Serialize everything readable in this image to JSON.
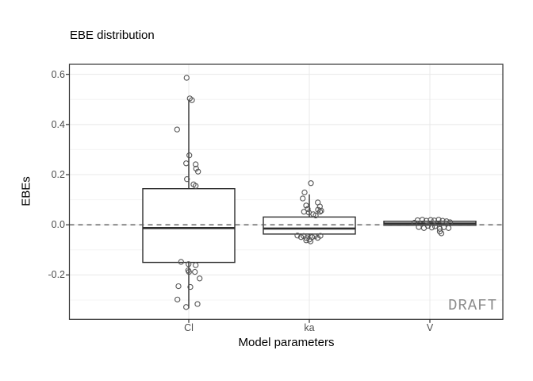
{
  "colors": {
    "background": "#ffffff",
    "panel_border": "#333333",
    "grid_major": "#e8e8e8",
    "grid_minor": "#f4f4f4",
    "box_stroke": "#2e2e2e",
    "box_fill": "#ffffff",
    "point_stroke": "#555555",
    "ref_line": "#5a5a5a",
    "tick_label": "#4d4d4d",
    "watermark": "#8c8c8c",
    "text": "#000000"
  },
  "chart_data": {
    "type": "boxplot",
    "title": "EBE distribution",
    "xlabel": "Model parameters",
    "ylabel": "EBEs",
    "watermark": "DRAFT",
    "categories": [
      "Cl",
      "ka",
      "V"
    ],
    "ylim": [
      -0.377,
      0.64
    ],
    "grid": true,
    "reference_line_y": 0,
    "y_ticks": [
      {
        "label": "0.6",
        "value": 0.6
      },
      {
        "label": "0.4",
        "value": 0.4
      },
      {
        "label": "0.2",
        "value": 0.2
      },
      {
        "label": "0.0",
        "value": 0.0
      },
      {
        "label": "-0.2",
        "value": -0.2
      }
    ],
    "y_minor_ticks": [
      0.5,
      0.3,
      0.1,
      -0.1,
      -0.3
    ],
    "series": [
      {
        "category": "Cl",
        "q1": -0.15,
        "median": -0.013,
        "q3": 0.144,
        "whisker_low": -0.333,
        "whisker_high": 0.499,
        "points": [
          [
            -2.7,
            0.586
          ],
          [
            1.3,
            0.504
          ],
          [
            4.0,
            0.497
          ],
          [
            -14.7,
            0.38
          ],
          [
            0.7,
            0.277
          ],
          [
            -3.3,
            0.245
          ],
          [
            8.7,
            0.241
          ],
          [
            9.3,
            0.224
          ],
          [
            11.7,
            0.212
          ],
          [
            -2.3,
            0.182
          ],
          [
            6.0,
            0.161
          ],
          [
            8.7,
            0.155
          ],
          [
            -9.7,
            -0.148
          ],
          [
            -0.3,
            -0.157
          ],
          [
            8.7,
            -0.161
          ],
          [
            -0.7,
            -0.182
          ],
          [
            0.3,
            -0.188
          ],
          [
            7.7,
            -0.188
          ],
          [
            13.7,
            -0.214
          ],
          [
            -13.0,
            -0.245
          ],
          [
            2.0,
            -0.248
          ],
          [
            -14.3,
            -0.298
          ],
          [
            -3.3,
            -0.328
          ],
          [
            11.0,
            -0.316
          ]
        ]
      },
      {
        "category": "ka",
        "q1": -0.037,
        "median": -0.015,
        "q3": 0.031,
        "whisker_low": -0.055,
        "whisker_high": 0.121,
        "points": [
          [
            2.0,
            0.166
          ],
          [
            -6.0,
            0.129
          ],
          [
            -8.3,
            0.105
          ],
          [
            10.7,
            0.089
          ],
          [
            -4.0,
            0.077
          ],
          [
            13.3,
            0.073
          ],
          [
            -2.0,
            0.063
          ],
          [
            11.0,
            0.06
          ],
          [
            15.0,
            0.056
          ],
          [
            13.5,
            0.052
          ],
          [
            -6.7,
            0.052
          ],
          [
            -0.7,
            0.049
          ],
          [
            5.0,
            0.042
          ],
          [
            8.0,
            0.037
          ],
          [
            -15.0,
            -0.043
          ],
          [
            -10.5,
            -0.049
          ],
          [
            -7.0,
            -0.045
          ],
          [
            -3.5,
            -0.053
          ],
          [
            0.0,
            -0.059
          ],
          [
            3.5,
            -0.049
          ],
          [
            7.0,
            -0.046
          ],
          [
            10.5,
            -0.052
          ],
          [
            14.0,
            -0.044
          ],
          [
            1.5,
            -0.066
          ],
          [
            -4.0,
            -0.062
          ]
        ]
      },
      {
        "category": "V",
        "q1": -0.002,
        "median": 0.005,
        "q3": 0.014,
        "whisker_low": -0.006,
        "whisker_high": 0.016,
        "points": [
          [
            -19.5,
            0.008
          ],
          [
            -15.5,
            0.018
          ],
          [
            -9.5,
            0.02
          ],
          [
            -4.5,
            0.016
          ],
          [
            1.0,
            0.019
          ],
          [
            5.5,
            0.017
          ],
          [
            11.0,
            0.02
          ],
          [
            16.0,
            0.016
          ],
          [
            21.0,
            0.014
          ],
          [
            25.5,
            0.01
          ],
          [
            -14.0,
            -0.009
          ],
          [
            -7.5,
            -0.013
          ],
          [
            -2.5,
            -0.004
          ],
          [
            2.5,
            -0.011
          ],
          [
            6.5,
            -0.006
          ],
          [
            12.5,
            -0.016
          ],
          [
            17.5,
            -0.01
          ],
          [
            23.5,
            -0.013
          ],
          [
            12.5,
            -0.027
          ],
          [
            14.5,
            -0.034
          ]
        ]
      }
    ]
  }
}
